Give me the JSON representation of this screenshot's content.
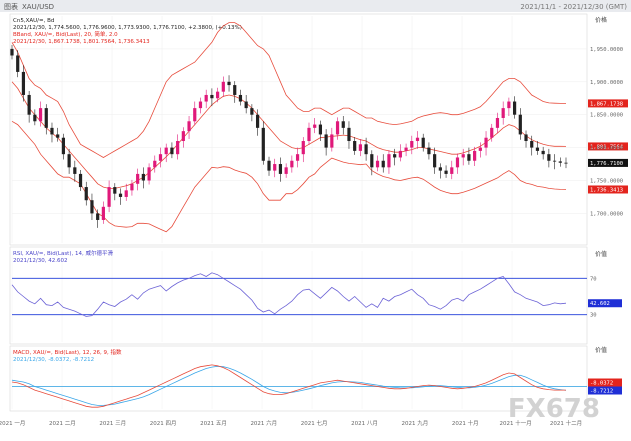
{
  "header": {
    "title": "图表",
    "tag": "XAU/USD"
  },
  "top_right_text": "2021/11/1 - 2021/12/30 (GMT)",
  "main_panel": {
    "info_line1": "Cn5,XAU/=, Bd",
    "info_line2": "2021/12/30, 1,774.5600, 1,776.9600, 1,773.9300, 1,776.7100, +2.3800, (+0.13%)",
    "bb_line1": "BBand, XAU/=, Bid(Last), 20, 简单, 2.0",
    "bb_line2": "2021/12/30, 1,867.1738, 1,801.7564, 1,736.3413",
    "unit": "价格",
    "badges": [
      {
        "label": "1,867.1738",
        "value": 1867.1738,
        "color": "#e3241d"
      },
      {
        "label": "1,801.7564",
        "value": 1801.7564,
        "color": "#e3241d"
      },
      {
        "label": "1,776.7100",
        "value": 1776.71,
        "color": "#111111"
      },
      {
        "label": "1,736.3413",
        "value": 1736.3413,
        "color": "#e3241d"
      }
    ]
  },
  "rsi_panel": {
    "info_line1": "RSI, XAU/=, Bid(Last), 14, 威尔德平滑",
    "info_line2": "2021/12/30, 42.602",
    "unit": "价值",
    "badge": {
      "label": "42.602",
      "value": 42.602,
      "color": "#1f2fd6"
    }
  },
  "macd_panel": {
    "info_line1": "MACD, XAU/=, Bid(Last), 12, 26, 9, 指数",
    "info_line2": "2021/12/30, -8.0372, -8.7212",
    "unit": "价值",
    "badges": [
      {
        "label": "-8.0372",
        "value": -8.0372,
        "color": "#e3241d"
      },
      {
        "label": "-8.7212",
        "value": -8.7212,
        "color": "#1f2fd6"
      }
    ]
  },
  "watermark": "FX678",
  "x_axis_labels": [
    "2021 一月",
    "2021 二月",
    "2021 三月",
    "2021 四月",
    "2021 五月",
    "2021 六月",
    "2021 七月",
    "2021 八月",
    "2021 九月",
    "2021 十月",
    "2021 十一月",
    "2021 十二月"
  ],
  "colors": {
    "band": "#e74c3c",
    "price_up": "#e0197a",
    "price_down": "#222222",
    "rsi": "#6c63d6",
    "macd": "#e74c3c",
    "signal": "#3aa6e8",
    "ref": "#1f3bd9"
  },
  "chart_data": [
    {
      "type": "candlestick",
      "title": "Cn5,XAU/=, Bd",
      "series": [
        {
          "name": "XAU/=",
          "kind": "close",
          "values": [
            1940,
            1915,
            1880,
            1850,
            1840,
            1860,
            1830,
            1820,
            1815,
            1790,
            1770,
            1760,
            1740,
            1720,
            1700,
            1690,
            1710,
            1740,
            1730,
            1725,
            1735,
            1745,
            1760,
            1750,
            1770,
            1780,
            1790,
            1800,
            1790,
            1810,
            1825,
            1840,
            1860,
            1870,
            1880,
            1875,
            1885,
            1900,
            1895,
            1880,
            1870,
            1860,
            1850,
            1830,
            1780,
            1765,
            1775,
            1760,
            1770,
            1780,
            1790,
            1810,
            1830,
            1835,
            1820,
            1800,
            1820,
            1840,
            1830,
            1810,
            1795,
            1805,
            1790,
            1770,
            1780,
            1770,
            1790,
            1785,
            1795,
            1800,
            1810,
            1815,
            1800,
            1790,
            1770,
            1765,
            1760,
            1770,
            1785,
            1790,
            1780,
            1795,
            1800,
            1815,
            1830,
            1845,
            1860,
            1870,
            1850,
            1820,
            1810,
            1800,
            1795,
            1790,
            1780,
            1779,
            1777,
            1776.71
          ]
        },
        {
          "name": "BBand Upper",
          "values": [
            1960,
            1945,
            1925,
            1905,
            1895,
            1890,
            1880,
            1875,
            1870,
            1855,
            1835,
            1820,
            1805,
            1800,
            1795,
            1790,
            1785,
            1790,
            1795,
            1800,
            1805,
            1810,
            1815,
            1825,
            1840,
            1860,
            1880,
            1900,
            1910,
            1915,
            1920,
            1925,
            1930,
            1940,
            1950,
            1960,
            1975,
            1985,
            1990,
            1990,
            1985,
            1975,
            1965,
            1955,
            1950,
            1940,
            1920,
            1900,
            1880,
            1870,
            1860,
            1855,
            1855,
            1860,
            1860,
            1855,
            1850,
            1855,
            1860,
            1860,
            1855,
            1850,
            1845,
            1845,
            1840,
            1838,
            1836,
            1835,
            1836,
            1838,
            1840,
            1845,
            1848,
            1850,
            1852,
            1853,
            1852,
            1850,
            1850,
            1852,
            1855,
            1858,
            1862,
            1870,
            1880,
            1890,
            1900,
            1905,
            1905,
            1900,
            1890,
            1880,
            1875,
            1870,
            1868,
            1867.5,
            1867.2,
            1867.1738
          ]
        },
        {
          "name": "BBand Middle",
          "values": [
            1900,
            1890,
            1875,
            1860,
            1850,
            1840,
            1830,
            1822,
            1815,
            1805,
            1795,
            1785,
            1775,
            1765,
            1755,
            1745,
            1740,
            1738,
            1738,
            1740,
            1742,
            1745,
            1750,
            1755,
            1762,
            1770,
            1778,
            1786,
            1795,
            1805,
            1815,
            1825,
            1835,
            1845,
            1855,
            1865,
            1872,
            1878,
            1880,
            1878,
            1874,
            1868,
            1860,
            1850,
            1840,
            1830,
            1820,
            1810,
            1805,
            1800,
            1798,
            1800,
            1805,
            1810,
            1815,
            1816,
            1817,
            1818,
            1819,
            1818,
            1815,
            1812,
            1810,
            1805,
            1800,
            1797,
            1795,
            1793,
            1793,
            1795,
            1797,
            1800,
            1800,
            1798,
            1796,
            1794,
            1792,
            1790,
            1790,
            1792,
            1795,
            1798,
            1802,
            1808,
            1815,
            1822,
            1830,
            1835,
            1832,
            1825,
            1818,
            1812,
            1808,
            1805,
            1803,
            1802,
            1801.9,
            1801.7564
          ]
        },
        {
          "name": "BBand Lower",
          "values": [
            1840,
            1835,
            1825,
            1815,
            1805,
            1790,
            1780,
            1770,
            1760,
            1755,
            1755,
            1750,
            1745,
            1730,
            1715,
            1700,
            1695,
            1686,
            1681,
            1680,
            1679,
            1680,
            1685,
            1685,
            1684,
            1680,
            1676,
            1672,
            1680,
            1695,
            1710,
            1725,
            1740,
            1750,
            1760,
            1770,
            1769,
            1771,
            1770,
            1766,
            1763,
            1761,
            1755,
            1745,
            1730,
            1720,
            1720,
            1720,
            1730,
            1730,
            1736,
            1745,
            1755,
            1760,
            1770,
            1777,
            1784,
            1781,
            1778,
            1776,
            1775,
            1774,
            1775,
            1765,
            1760,
            1756,
            1754,
            1751,
            1750,
            1752,
            1754,
            1755,
            1752,
            1746,
            1740,
            1735,
            1732,
            1730,
            1730,
            1732,
            1735,
            1738,
            1742,
            1746,
            1750,
            1754,
            1760,
            1765,
            1759,
            1750,
            1746,
            1744,
            1741,
            1740,
            1738,
            1737,
            1736.5,
            1736.3413
          ]
        }
      ]
    },
    {
      "type": "line",
      "title": "RSI, XAU/=, Bid(Last), 14, 威尔德平滑",
      "ylim": [
        0,
        100
      ],
      "reference_lines": [
        70,
        30
      ],
      "series": [
        {
          "name": "RSI",
          "values": [
            63,
            55,
            50,
            45,
            42,
            48,
            41,
            40,
            44,
            38,
            36,
            34,
            31,
            28,
            29,
            36,
            44,
            41,
            39,
            44,
            47,
            52,
            47,
            54,
            58,
            60,
            62,
            56,
            61,
            65,
            68,
            70,
            73,
            75,
            72,
            76,
            74,
            70,
            66,
            62,
            58,
            52,
            46,
            37,
            33,
            35,
            31,
            36,
            40,
            45,
            52,
            57,
            58,
            53,
            48,
            54,
            60,
            56,
            50,
            45,
            50,
            44,
            38,
            42,
            38,
            48,
            45,
            50,
            52,
            55,
            58,
            52,
            48,
            41,
            39,
            36,
            40,
            46,
            48,
            45,
            52,
            55,
            58,
            62,
            66,
            70,
            72,
            64,
            55,
            52,
            48,
            46,
            44,
            40,
            41,
            43,
            42,
            42.602
          ]
        }
      ]
    },
    {
      "type": "line",
      "title": "MACD, XAU/=, Bid(Last), 12, 26, 9, 指数",
      "series": [
        {
          "name": "MACD",
          "values": [
            10,
            8,
            4,
            -2,
            -8,
            -12,
            -16,
            -20,
            -24,
            -28,
            -32,
            -36,
            -40,
            -44,
            -46,
            -46,
            -44,
            -40,
            -36,
            -32,
            -28,
            -24,
            -20,
            -14,
            -8,
            -2,
            4,
            10,
            16,
            22,
            28,
            34,
            40,
            44,
            46,
            48,
            46,
            42,
            36,
            28,
            20,
            12,
            4,
            -4,
            -12,
            -16,
            -18,
            -18,
            -16,
            -12,
            -8,
            -4,
            0,
            4,
            8,
            10,
            12,
            14,
            12,
            10,
            8,
            6,
            4,
            2,
            0,
            -2,
            -4,
            -5,
            -5,
            -4,
            -2,
            0,
            2,
            3,
            2,
            0,
            -2,
            -4,
            -5,
            -4,
            -2,
            0,
            4,
            8,
            14,
            20,
            26,
            30,
            28,
            20,
            12,
            4,
            -2,
            -5,
            -7,
            -8,
            -8,
            -8.0372
          ]
        },
        {
          "name": "Signal",
          "values": [
            14,
            12,
            10,
            6,
            0,
            -4,
            -8,
            -12,
            -16,
            -20,
            -24,
            -28,
            -32,
            -36,
            -40,
            -42,
            -42,
            -41,
            -39,
            -36,
            -33,
            -30,
            -27,
            -23,
            -18,
            -12,
            -6,
            0,
            6,
            12,
            18,
            24,
            30,
            35,
            40,
            43,
            45,
            44,
            41,
            36,
            30,
            23,
            16,
            8,
            0,
            -6,
            -10,
            -13,
            -14,
            -13,
            -11,
            -8,
            -5,
            -2,
            2,
            5,
            8,
            10,
            11,
            11,
            10,
            9,
            7,
            5,
            3,
            1,
            -1,
            -2,
            -3,
            -3,
            -3,
            -2,
            -1,
            1,
            2,
            2,
            1,
            -1,
            -2,
            -3,
            -3,
            -2,
            0,
            3,
            7,
            12,
            17,
            22,
            25,
            25,
            21,
            15,
            9,
            3,
            -2,
            -5,
            -7,
            -8.7212
          ]
        }
      ]
    }
  ]
}
